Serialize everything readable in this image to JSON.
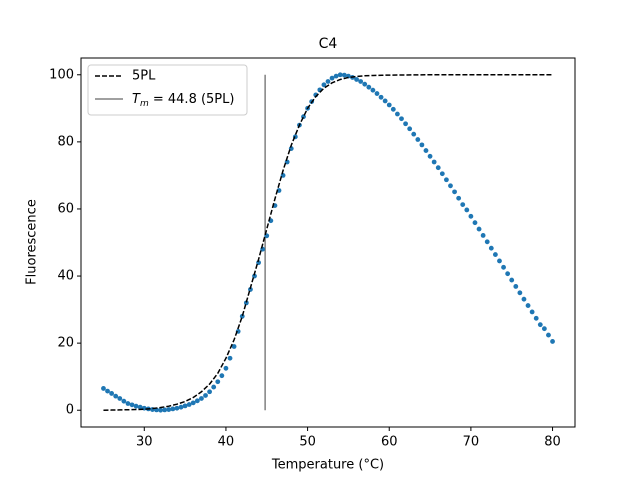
{
  "chart_data": {
    "type": "scatter",
    "title": "C4",
    "x_label": "Temperature (°C)",
    "y_label": "Fluorescence",
    "xlim": [
      22.25,
      82.75
    ],
    "ylim": [
      -5,
      105
    ],
    "xticks": [
      30,
      40,
      50,
      60,
      70,
      80
    ],
    "yticks": [
      0,
      20,
      40,
      60,
      80,
      100
    ],
    "grid": false,
    "legend_position": "upper left",
    "points": {
      "color": "#1f77b4",
      "x": [
        25,
        25.5,
        26,
        26.5,
        27,
        27.5,
        28,
        28.5,
        29,
        29.5,
        30,
        30.5,
        31,
        31.5,
        32,
        32.5,
        33,
        33.5,
        34,
        34.5,
        35,
        35.5,
        36,
        36.5,
        37,
        37.5,
        38,
        38.5,
        39,
        39.5,
        40,
        40.5,
        41,
        41.5,
        42,
        42.5,
        43,
        43.5,
        44,
        44.5,
        45,
        45.5,
        46,
        46.5,
        47,
        47.5,
        48,
        48.5,
        49,
        49.5,
        50,
        50.5,
        51,
        51.5,
        52,
        52.5,
        53,
        53.5,
        54,
        54.5,
        55,
        55.5,
        56,
        56.5,
        57,
        57.5,
        58,
        58.5,
        59,
        59.5,
        60,
        60.5,
        61,
        61.5,
        62,
        62.5,
        63,
        63.5,
        64,
        64.5,
        65,
        65.5,
        66,
        66.5,
        67,
        67.5,
        68,
        68.5,
        69,
        69.5,
        70,
        70.5,
        71,
        71.5,
        72,
        72.5,
        73,
        73.5,
        74,
        74.5,
        75,
        75.5,
        76,
        76.5,
        77,
        77.5,
        78,
        78.5,
        79,
        79.5,
        80
      ],
      "values": [
        6.5,
        5.7,
        5.0,
        4.2,
        3.5,
        2.7,
        2.0,
        1.6,
        1.2,
        0.9,
        0.6,
        0.4,
        0.2,
        0.1,
        0.0,
        0.1,
        0.2,
        0.4,
        0.6,
        0.9,
        1.3,
        1.7,
        2.2,
        2.8,
        3.5,
        4.4,
        5.5,
        6.9,
        8.5,
        10.3,
        12.5,
        15.5,
        19,
        23.5,
        28,
        32,
        36,
        40,
        44,
        48,
        52,
        56.5,
        61,
        65.5,
        70,
        74,
        78,
        81.5,
        85,
        87.5,
        90,
        92,
        94,
        95.5,
        97,
        98,
        99,
        99.6,
        100,
        99.9,
        99.6,
        99.2,
        98.6,
        98,
        97.2,
        96.3,
        95.4,
        94.4,
        93.3,
        92.2,
        91,
        89.7,
        88.3,
        86.9,
        85.4,
        83.9,
        82.3,
        80.7,
        79.1,
        77.4,
        75.7,
        74,
        72.3,
        70.5,
        68.7,
        66.9,
        65.1,
        63.2,
        61.3,
        59.7,
        57.8,
        55.9,
        54,
        52.1,
        50.2,
        48.3,
        46.4,
        44.5,
        42.6,
        40.7,
        38.8,
        36.9,
        35,
        33.1,
        31.2,
        29.3,
        27.4,
        25.5,
        24.3,
        22.4,
        20.5
      ]
    },
    "fit": {
      "name": "5PL",
      "color": "#000000",
      "x": [
        25,
        26,
        27,
        28,
        29,
        30,
        31,
        32,
        33,
        34,
        35,
        36,
        37,
        38,
        39,
        40,
        41,
        42,
        43,
        44,
        45,
        46,
        47,
        48,
        49,
        50,
        51,
        52,
        53,
        54,
        55,
        56,
        57,
        58,
        60,
        65,
        70,
        75,
        80
      ],
      "values": [
        0.0,
        0.05,
        0.1,
        0.15,
        0.2,
        0.3,
        0.5,
        0.8,
        1.2,
        1.8,
        2.6,
        3.8,
        5.5,
        7.8,
        11,
        15.5,
        21,
        28,
        36.5,
        45,
        54,
        63,
        71.5,
        79,
        85,
        90,
        93.5,
        96,
        97.6,
        98.6,
        99.2,
        99.5,
        99.7,
        99.8,
        99.9,
        100,
        100,
        100,
        100
      ]
    },
    "vline": {
      "label": [
        "T",
        "m",
        " = 44.8 (5PL)"
      ],
      "x": 44.8,
      "ymin": 0,
      "ymax": 100,
      "color": "#808080"
    }
  }
}
